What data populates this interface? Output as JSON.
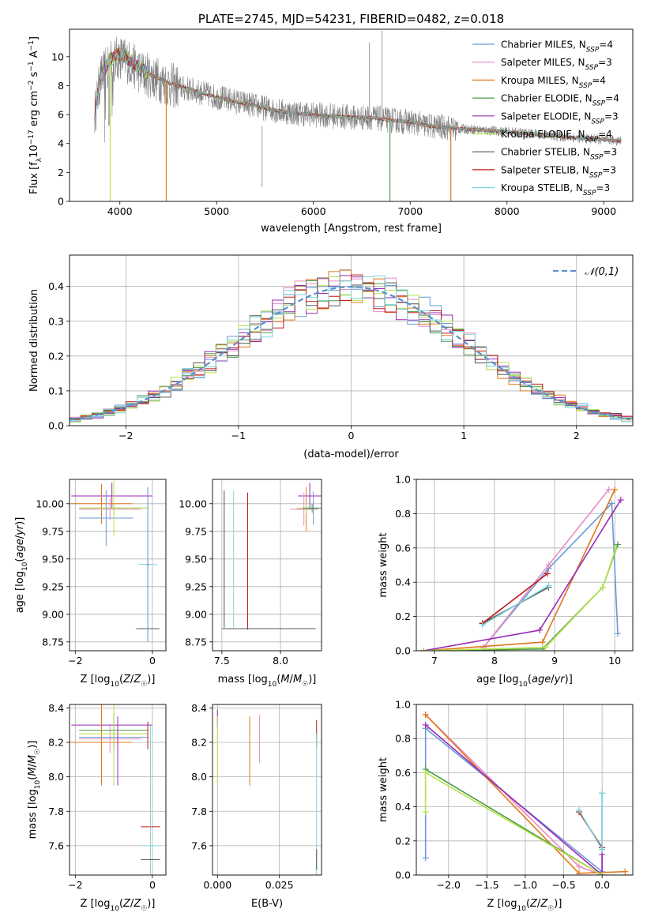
{
  "colors": {
    "blue": "#6a9ad8",
    "pink": "#e88bc4",
    "orange": "#e0781a",
    "green": "#4a9a4a",
    "purple": "#9a2ab4",
    "lime": "#b8e44a",
    "darkgray": "#555555",
    "red": "#c01818",
    "cyan": "#7ad8dc"
  },
  "chart_data": [
    {
      "type": "line",
      "title": "PLATE=2745, MJD=54231, FIBERID=0482, z=0.018",
      "xlabel": "wavelength [Angstrom, rest frame]",
      "ylabel": "Flux [f_λ 10^-17 erg cm^-2 s^-1 A^-1]",
      "xlim": [
        3480,
        9300
      ],
      "ylim": [
        0,
        11.9
      ],
      "xticks": [
        4000,
        5000,
        6000,
        7000,
        8000,
        9000
      ],
      "yticks": [
        0,
        2,
        4,
        6,
        8,
        10
      ],
      "legend": "upper right",
      "series": [
        {
          "name": "Chabrier MILES, N_SSP=4",
          "color": "blue"
        },
        {
          "name": "Salpeter MILES, N_SSP=3",
          "color": "pink"
        },
        {
          "name": "Kroupa MILES, N_SSP=4",
          "color": "orange"
        },
        {
          "name": "Chabrier ELODIE, N_SSP=4",
          "color": "green"
        },
        {
          "name": "Salpeter ELODIE, N_SSP=3",
          "color": "purple"
        },
        {
          "name": "Kroupa ELODIE, N_SSP=4",
          "color": "lime"
        },
        {
          "name": "Chabrier STELIB, N_SSP=3",
          "color": "darkgray"
        },
        {
          "name": "Salpeter STELIB, N_SSP=3",
          "color": "red"
        },
        {
          "name": "Kroupa STELIB, N_SSP=3",
          "color": "cyan"
        }
      ],
      "data_spectrum": {
        "name": "",
        "color": "#808080",
        "x": [
          3740,
          3800,
          3900,
          4000,
          4100,
          4200,
          4300,
          4400,
          4500,
          4600,
          4800,
          5000,
          5200,
          5400,
          5600,
          5800,
          6000,
          6200,
          6400,
          6600,
          6800,
          7000,
          7200,
          7400,
          7450,
          7600,
          7800,
          8000,
          8200,
          8400,
          8600,
          8800,
          9000,
          9180
        ],
        "y": [
          6.0,
          8.5,
          9.5,
          10.0,
          9.6,
          9.0,
          8.7,
          8.4,
          8.1,
          7.9,
          7.6,
          7.2,
          6.9,
          6.6,
          6.3,
          6.1,
          6.0,
          5.9,
          5.8,
          5.8,
          5.6,
          5.5,
          5.2,
          5.1,
          5.0,
          5.0,
          4.9,
          4.8,
          4.7,
          4.6,
          4.45,
          4.35,
          4.25,
          4.2
        ]
      },
      "model_continuum": {
        "x": [
          3740,
          3800,
          3900,
          4000,
          4100,
          4200,
          4300,
          4400,
          4500,
          4600,
          4800,
          5000,
          5200,
          5400,
          5600,
          5800,
          6000,
          6200,
          6400,
          6600,
          6800,
          7000,
          7200,
          7400,
          7600,
          7800,
          8000,
          8200,
          8400,
          8600,
          8800,
          9000,
          9180
        ],
        "y": [
          6.0,
          8.8,
          9.8,
          10.2,
          9.8,
          9.2,
          8.8,
          8.5,
          8.2,
          8.0,
          7.6,
          7.2,
          6.9,
          6.6,
          6.3,
          6.1,
          6.0,
          5.9,
          5.8,
          5.8,
          5.6,
          5.5,
          5.2,
          5.1,
          5.0,
          4.9,
          4.8,
          4.7,
          4.6,
          4.45,
          4.35,
          4.25,
          4.2
        ]
      },
      "dropouts": [
        {
          "x": 3900,
          "color": "lime"
        },
        {
          "x": 4480,
          "color": "orange"
        },
        {
          "x": 6790,
          "color": "green"
        },
        {
          "x": 7420,
          "color": "orange"
        }
      ],
      "spikes": [
        {
          "x": 5470,
          "y": 1.0
        },
        {
          "x": 6580,
          "y": 11.0
        },
        {
          "x": 6710,
          "y": 11.8
        }
      ]
    },
    {
      "type": "line",
      "title": "",
      "xlabel": "(data-model)/error",
      "ylabel": "Normed distribution",
      "xlim": [
        -2.5,
        2.5
      ],
      "ylim": [
        0,
        0.49
      ],
      "xticks": [
        -2,
        -1,
        0,
        1,
        2
      ],
      "yticks": [
        0.0,
        0.1,
        0.2,
        0.3,
        0.4
      ],
      "grid": true,
      "legend": "upper right",
      "reference_curve": {
        "name": "𝒩(0,1)",
        "color": "#5b8fd0",
        "mean": 0,
        "std": 1
      },
      "histograms": {
        "bin_width": 0.1,
        "x_start": -2.5,
        "colors": [
          "blue",
          "pink",
          "orange",
          "green",
          "purple",
          "lime",
          "darkgray",
          "red",
          "cyan"
        ]
      }
    },
    {
      "type": "scatter",
      "title": "",
      "xlabel": "Z [log10(Z/Z☉)]",
      "ylabel": "age  [log10(age/yr)]",
      "xlim": [
        -2.15,
        0.35
      ],
      "ylim": [
        8.67,
        10.22
      ],
      "xticks": [
        -2,
        0
      ],
      "yticks": [
        8.75,
        9.0,
        9.25,
        9.5,
        9.75,
        10.0
      ],
      "points": [
        {
          "color": "purple",
          "x": -1.05,
          "xerr": 1.05,
          "y": 10.07,
          "yerr": 0.12
        },
        {
          "color": "orange",
          "x": -1.32,
          "xerr": 0.8,
          "y": 10.0,
          "yerr": 0.18
        },
        {
          "color": "pink",
          "x": -1.1,
          "xerr": 0.8,
          "y": 9.95,
          "yerr": 0.1
        },
        {
          "color": "blue",
          "x": -1.2,
          "xerr": 0.7,
          "y": 9.87,
          "yerr": 0.25
        },
        {
          "color": "green",
          "x": -1.0,
          "xerr": 0.9,
          "y": 9.96,
          "yerr": 0.05
        },
        {
          "color": "lime",
          "x": -1.0,
          "xerr": 0.9,
          "y": 9.96,
          "yerr": 0.25
        },
        {
          "color": "cyan",
          "x": -0.12,
          "xerr": 0.25,
          "y": 9.45,
          "yerr": 0.7
        },
        {
          "color": "darkgray",
          "x": -0.12,
          "xerr": 0.3,
          "y": 8.87,
          "yerr": 0.0
        },
        {
          "color": "blue",
          "x": -0.12,
          "xerr": 0.05,
          "y": 9.45,
          "yerr": 0.7
        }
      ]
    },
    {
      "type": "scatter",
      "title": "",
      "xlabel": "mass [log10(M/M☉)]",
      "ylabel": "",
      "xlim": [
        7.42,
        8.35
      ],
      "ylim": [
        8.67,
        10.22
      ],
      "xticks": [
        7.5,
        8.0
      ],
      "yticks": [
        8.75,
        9.0,
        9.25,
        9.5,
        9.75,
        10.0
      ],
      "points": [
        {
          "color": "darkgray",
          "x": 7.52,
          "xerr": 0.0,
          "y": 9.5,
          "yerr": 0.62
        },
        {
          "color": "cyan",
          "x": 7.6,
          "xerr": 0.0,
          "y": 9.5,
          "yerr": 0.62
        },
        {
          "color": "red",
          "x": 7.72,
          "xerr": 0.0,
          "y": 9.48,
          "yerr": 0.62
        },
        {
          "color": "darkgray",
          "x": 7.9,
          "xerr": 0.4,
          "y": 8.87,
          "yerr": 0.0
        },
        {
          "color": "purple",
          "x": 8.25,
          "xerr": 0.1,
          "y": 10.07,
          "yerr": 0.12
        },
        {
          "color": "orange",
          "x": 8.22,
          "xerr": 0.1,
          "y": 9.95,
          "yerr": 0.2
        },
        {
          "color": "pink",
          "x": 8.2,
          "xerr": 0.12,
          "y": 9.95,
          "yerr": 0.15
        },
        {
          "color": "lime",
          "x": 8.22,
          "xerr": 0.08,
          "y": 9.96,
          "yerr": 0.05
        },
        {
          "color": "blue",
          "x": 8.28,
          "xerr": 0.05,
          "y": 9.96,
          "yerr": 0.15
        },
        {
          "color": "green",
          "x": 8.27,
          "xerr": 0.08,
          "y": 9.96,
          "yerr": 0.04
        }
      ]
    },
    {
      "type": "line",
      "title": "",
      "xlabel": "age  [log10(age/yr)]",
      "ylabel": "mass weight",
      "xlim": [
        6.7,
        10.3
      ],
      "ylim": [
        0,
        1.0
      ],
      "xticks": [
        7,
        8,
        9,
        10
      ],
      "yticks": [
        0.0,
        0.2,
        0.4,
        0.6,
        0.8,
        1.0
      ],
      "series": [
        {
          "color": "blue",
          "x": [
            7.82,
            8.9,
            9.95,
            10.05
          ],
          "y": [
            0.02,
            0.48,
            0.86,
            0.1
          ]
        },
        {
          "color": "pink",
          "x": [
            7.82,
            8.9,
            9.9
          ],
          "y": [
            0.02,
            0.5,
            0.94
          ]
        },
        {
          "color": "orange",
          "x": [
            6.82,
            8.8,
            10.0
          ],
          "y": [
            0.0,
            0.05,
            0.94
          ]
        },
        {
          "color": "green",
          "x": [
            6.82,
            8.8,
            9.8,
            10.05
          ],
          "y": [
            0.0,
            0.01,
            0.37,
            0.62
          ]
        },
        {
          "color": "purple",
          "x": [
            6.82,
            8.75,
            10.1
          ],
          "y": [
            0.0,
            0.12,
            0.88
          ]
        },
        {
          "color": "lime",
          "x": [
            6.82,
            8.85,
            9.8,
            10.02
          ],
          "y": [
            0.0,
            0.02,
            0.37,
            0.6
          ]
        },
        {
          "color": "darkgray",
          "x": [
            7.8,
            8.9
          ],
          "y": [
            0.16,
            0.37
          ]
        },
        {
          "color": "red",
          "x": [
            7.8,
            8.88
          ],
          "y": [
            0.16,
            0.45
          ]
        },
        {
          "color": "cyan",
          "x": [
            7.8,
            8.9
          ],
          "y": [
            0.15,
            0.38
          ]
        }
      ]
    },
    {
      "type": "scatter",
      "title": "",
      "xlabel": "Z [log10(Z/Z☉)]",
      "ylabel": "mass [log10(M/M☉)]",
      "xlim": [
        -2.15,
        0.35
      ],
      "ylim": [
        7.43,
        8.42
      ],
      "xticks": [
        -2,
        0
      ],
      "yticks": [
        7.6,
        7.8,
        8.0,
        8.2,
        8.4
      ],
      "points": [
        {
          "color": "purple",
          "x": -1.05,
          "xerr": 1.05,
          "y": 8.3,
          "yerr": 0.0
        },
        {
          "color": "orange",
          "x": -1.32,
          "xerr": 0.8,
          "y": 8.2,
          "yerr": 0.25
        },
        {
          "color": "pink",
          "x": -1.1,
          "xerr": 0.8,
          "y": 8.22,
          "yerr": 0.08
        },
        {
          "color": "blue",
          "x": -1.0,
          "xerr": 0.9,
          "y": 8.23,
          "yerr": 0.07
        },
        {
          "color": "green",
          "x": -1.0,
          "xerr": 0.9,
          "y": 8.27,
          "yerr": 0.1
        },
        {
          "color": "lime",
          "x": -1.0,
          "xerr": 0.9,
          "y": 8.25,
          "yerr": 0.3
        },
        {
          "color": "purple",
          "x": -0.9,
          "xerr": 0.0,
          "y": 8.15,
          "yerr": 0.2
        },
        {
          "color": "red",
          "x": -0.05,
          "xerr": 0.25,
          "y": 7.71,
          "yerr": 0.0
        },
        {
          "color": "cyan",
          "x": -0.05,
          "xerr": 0.25,
          "y": 7.6,
          "yerr": 0.7
        },
        {
          "color": "darkgray",
          "x": -0.05,
          "xerr": 0.25,
          "y": 7.52,
          "yerr": 0.0
        },
        {
          "color": "red",
          "x": -0.12,
          "xerr": 0.0,
          "y": 8.24,
          "yerr": 0.08
        }
      ]
    },
    {
      "type": "scatter",
      "title": "",
      "xlabel": "E(B-V)",
      "ylabel": "",
      "xlim": [
        -0.002,
        0.042
      ],
      "ylim": [
        7.43,
        8.42
      ],
      "xticks": [
        0.0,
        0.025
      ],
      "yticks": [
        7.6,
        7.8,
        8.0,
        8.2,
        8.4
      ],
      "points": [
        {
          "color": "purple",
          "x": 0.0,
          "xerr": 0.0,
          "y": 8.34,
          "yerr": 0.05
        },
        {
          "color": "lime",
          "x": 0.0,
          "xerr": 0.0,
          "y": 8.15,
          "yerr": 0.2
        },
        {
          "color": "orange",
          "x": 0.013,
          "xerr": 0.0,
          "y": 8.15,
          "yerr": 0.2
        },
        {
          "color": "pink",
          "x": 0.017,
          "xerr": 0.0,
          "y": 8.22,
          "yerr": 0.14
        },
        {
          "color": "red",
          "x": 0.04,
          "xerr": 0.0,
          "y": 8.25,
          "yerr": 0.08
        },
        {
          "color": "cyan",
          "x": 0.04,
          "xerr": 0.0,
          "y": 7.6,
          "yerr": 0.65
        },
        {
          "color": "darkgray",
          "x": 0.04,
          "xerr": 0.0,
          "y": 7.52,
          "yerr": 0.06
        }
      ]
    },
    {
      "type": "line",
      "title": "",
      "xlabel": "Z [log10(Z/Z☉)]",
      "ylabel": "mass weight",
      "xlim": [
        -2.42,
        0.4
      ],
      "ylim": [
        0,
        1.0
      ],
      "xticks": [
        -2.0,
        -1.5,
        -1.0,
        -0.5,
        0.0
      ],
      "yticks": [
        0.0,
        0.2,
        0.4,
        0.6,
        0.8,
        1.0
      ],
      "series": [
        {
          "color": "blue",
          "x": [
            -2.3,
            -2.3,
            0.0,
            0.0
          ],
          "y": [
            0.1,
            0.86,
            0.02,
            0.48
          ]
        },
        {
          "color": "pink",
          "x": [
            -2.3,
            -0.3,
            0.0
          ],
          "y": [
            0.94,
            0.05,
            0.0
          ]
        },
        {
          "color": "orange",
          "x": [
            -2.3,
            -0.3,
            0.3
          ],
          "y": [
            0.94,
            0.01,
            0.02
          ]
        },
        {
          "color": "green",
          "x": [
            -2.3,
            0.0
          ],
          "y": [
            0.62,
            0.0
          ]
        },
        {
          "color": "purple",
          "x": [
            -2.3,
            0.0,
            0.0
          ],
          "y": [
            0.88,
            0.0,
            0.12
          ]
        },
        {
          "color": "lime",
          "x": [
            -2.3,
            -2.3,
            0.0
          ],
          "y": [
            0.37,
            0.6,
            0.0
          ]
        },
        {
          "color": "darkgray",
          "x": [
            -0.3,
            0.0
          ],
          "y": [
            0.37,
            0.16
          ]
        },
        {
          "color": "red",
          "x": [
            -0.3,
            0.0
          ],
          "y": [
            0.37,
            0.16
          ]
        },
        {
          "color": "cyan",
          "x": [
            -0.3,
            0.0,
            0.0
          ],
          "y": [
            0.38,
            0.15,
            0.48
          ]
        }
      ]
    }
  ]
}
